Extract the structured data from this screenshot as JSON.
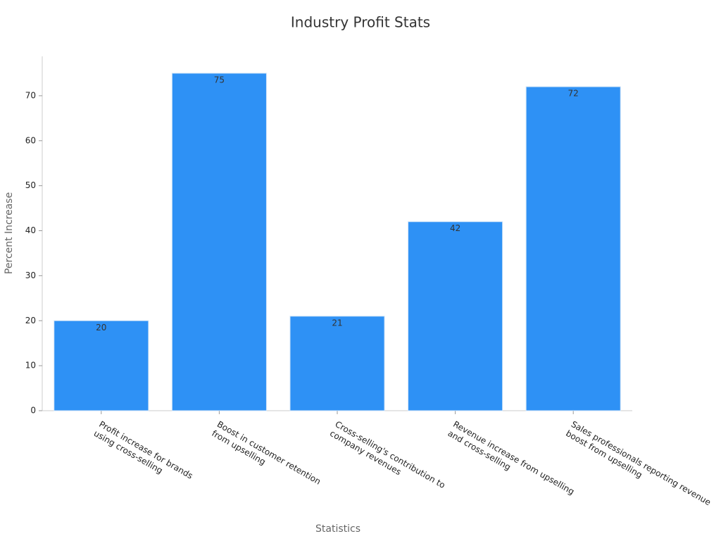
{
  "chart_data": {
    "type": "bar",
    "title": "Industry Profit Stats",
    "x_label": "Statistics",
    "y_label": "Percent Increase",
    "categories": [
      "Profit increase for brands\nusing cross-selling",
      "Boost in customer retention\nfrom upselling",
      "Cross-selling's contribution to\ncompany revenues",
      "Revenue increase from upselling\nand cross-selling",
      "Sales professionals reporting revenue\nboost from upselling"
    ],
    "values": [
      20,
      75,
      21,
      42,
      72
    ],
    "color": "#2e91f5",
    "ylim": [
      0,
      78.75
    ],
    "yticks": [
      0,
      10,
      20,
      30,
      40,
      50,
      60,
      70
    ]
  }
}
